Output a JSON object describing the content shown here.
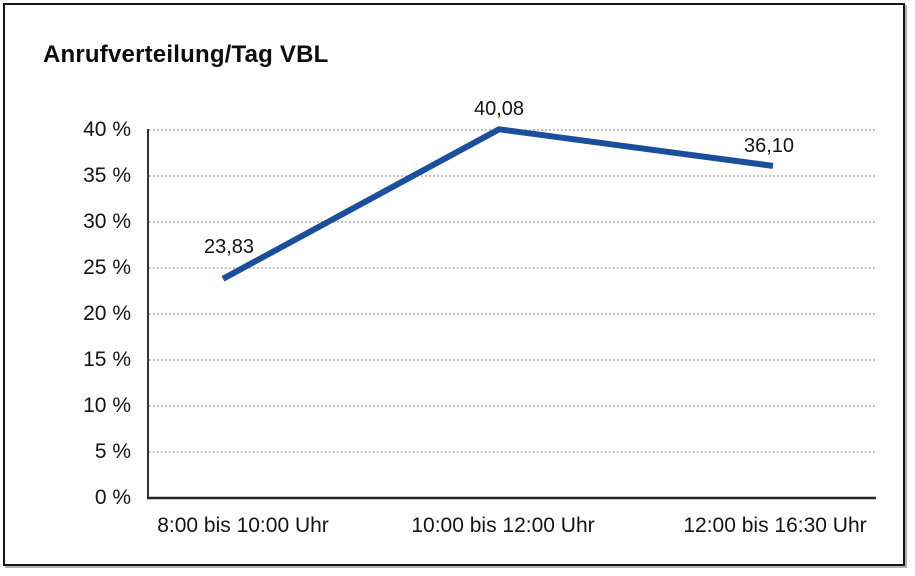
{
  "chart_data": {
    "type": "line",
    "title": "Anrufverteilung/Tag VBL",
    "categories": [
      "8:00 bis 10:00 Uhr",
      "10:00 bis 12:00 Uhr",
      "12:00 bis 16:30 Uhr"
    ],
    "values": [
      23.83,
      40.08,
      36.1
    ],
    "value_labels": [
      "23,83",
      "40,08",
      "36,10"
    ],
    "ytick_labels": [
      "0 %",
      "5 %",
      "10 %",
      "15 %",
      "20 %",
      "25 %",
      "30 %",
      "35 %",
      "40 %"
    ],
    "ylim": [
      0,
      40
    ],
    "xlabel": "",
    "ylabel": "",
    "legend": "none",
    "grid": "horizontal-dotted",
    "line_color": "#1b4f9c",
    "axis_color": "#1c1c1c",
    "gridline_color": "#8c8c8c"
  }
}
